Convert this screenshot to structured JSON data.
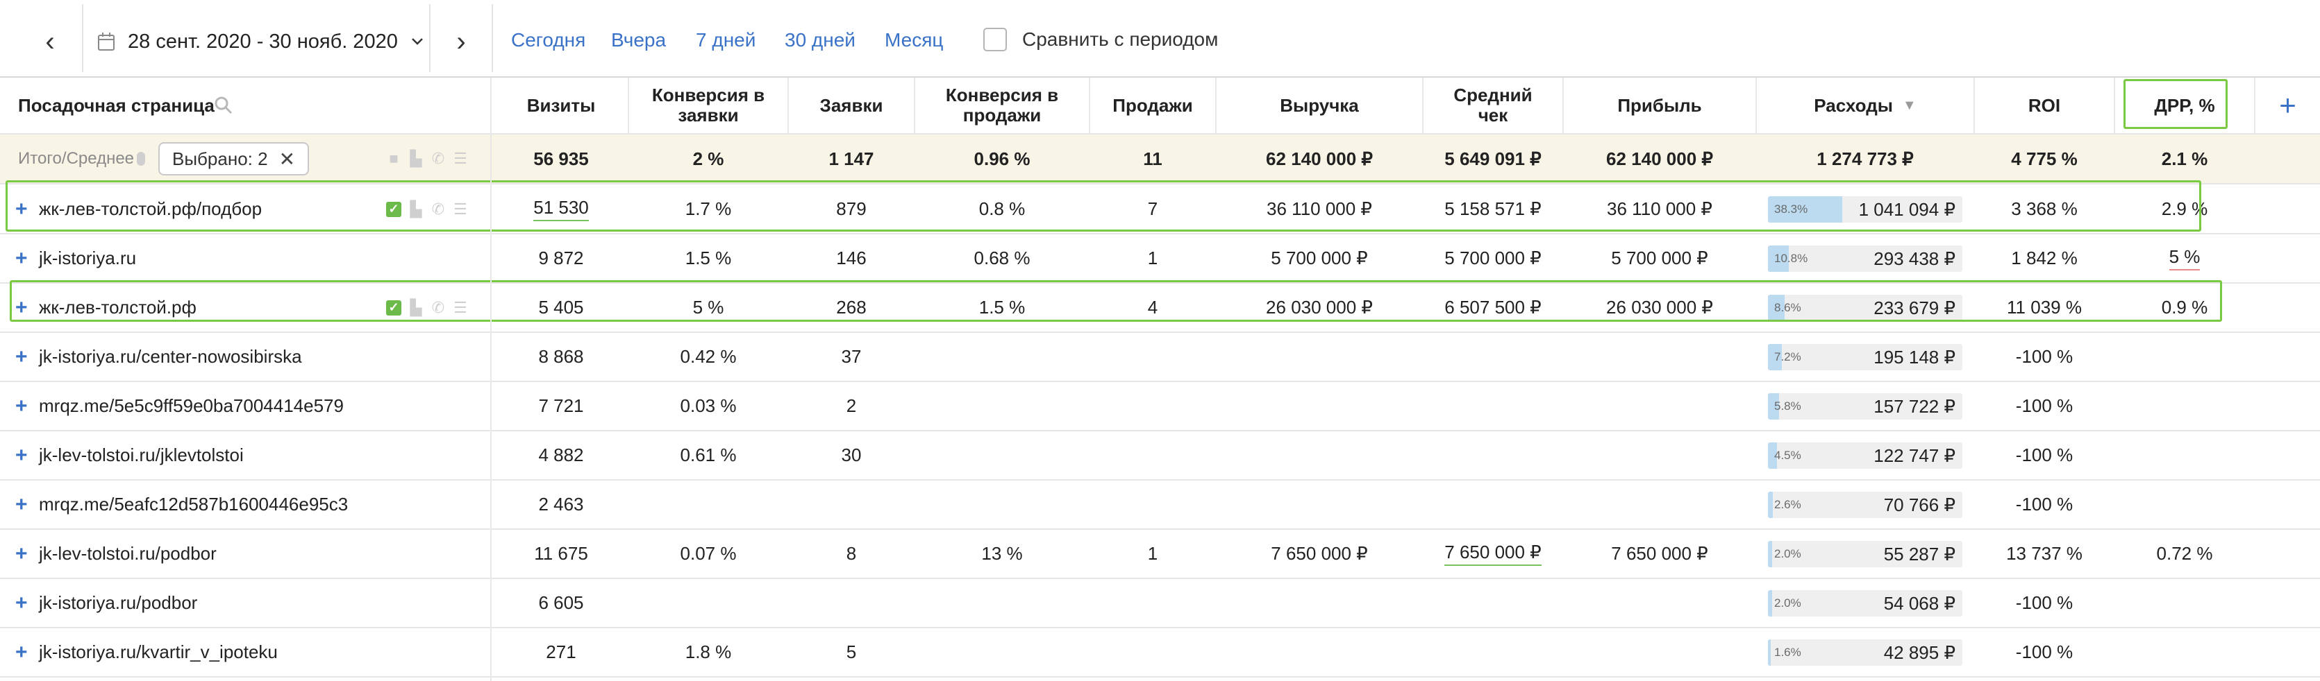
{
  "toolbar": {
    "prev_label": "‹",
    "next_label": "›",
    "date_range": "28 сент. 2020 - 30 нояб. 2020",
    "quick_links": [
      "Сегодня",
      "Вчера",
      "7 дней",
      "30 дней",
      "Месяц"
    ],
    "compare_label": "Сравнить с периодом",
    "compare_checked": false
  },
  "header": {
    "page_col": "Посадочная страница",
    "visits": "Визиты",
    "conv_leads_1": "Конверсия в",
    "conv_leads_2": "заявки",
    "leads": "Заявки",
    "conv_sales_1": "Конверсия в",
    "conv_sales_2": "продажи",
    "sales": "Продажи",
    "revenue": "Выручка",
    "avg_check_1": "Средний",
    "avg_check_2": "чек",
    "profit": "Прибыль",
    "expenses": "Расходы",
    "expenses_sort": "▼",
    "roi": "ROI",
    "drr": "ДРР, %",
    "add": "+"
  },
  "totals": {
    "label": "Итого/Среднее",
    "selected": "Выбрано: 2",
    "visits": "56 935",
    "conv_leads": "2 %",
    "leads": "1 147",
    "conv_sales": "0.96 %",
    "sales": "11",
    "revenue": "62 140 000 ₽",
    "avg_check": "5 649 091 ₽",
    "profit": "62 140 000 ₽",
    "expenses": "1 274 773 ₽",
    "roi": "4 775 %",
    "drr": "2.1 %"
  },
  "rows": [
    {
      "page": "жк-лев-толстой.рф/подбор",
      "visits": "51 530",
      "conv_leads": "1.7 %",
      "leads": "879",
      "conv_sales": "0.8 %",
      "sales": "7",
      "revenue": "36 110 000 ₽",
      "avg_check": "5 158 571 ₽",
      "profit": "36 110 000 ₽",
      "exp_pct": "38.3%",
      "exp_share": 0.383,
      "expenses": "1 041 094 ₽",
      "roi": "3 368 %",
      "drr": "2.9 %",
      "selected": true
    },
    {
      "page": "jk-istoriya.ru",
      "visits": "9 872",
      "conv_leads": "1.5 %",
      "leads": "146",
      "conv_sales": "0.68 %",
      "sales": "1",
      "revenue": "5 700 000 ₽",
      "avg_check": "5 700 000 ₽",
      "profit": "5 700 000 ₽",
      "exp_pct": "10.8%",
      "exp_share": 0.108,
      "expenses": "293 438 ₽",
      "roi": "1 842 %",
      "drr": "5 %",
      "selected": false
    },
    {
      "page": "жк-лев-толстой.рф",
      "visits": "5 405",
      "conv_leads": "5 %",
      "leads": "268",
      "conv_sales": "1.5 %",
      "sales": "4",
      "revenue": "26 030 000 ₽",
      "avg_check": "6 507 500 ₽",
      "profit": "26 030 000 ₽",
      "exp_pct": "8.6%",
      "exp_share": 0.086,
      "expenses": "233 679 ₽",
      "roi": "11 039 %",
      "drr": "0.9 %",
      "selected": true
    },
    {
      "page": "jk-istoriya.ru/center-nowosibirska",
      "visits": "8 868",
      "conv_leads": "0.42 %",
      "leads": "37",
      "conv_sales": "",
      "sales": "",
      "revenue": "",
      "avg_check": "",
      "profit": "",
      "exp_pct": "7.2%",
      "exp_share": 0.072,
      "expenses": "195 148 ₽",
      "roi": "-100 %",
      "drr": "",
      "selected": false
    },
    {
      "page": "mrqz.me/5e5c9ff59e0ba7004414e579",
      "visits": "7 721",
      "conv_leads": "0.03 %",
      "leads": "2",
      "conv_sales": "",
      "sales": "",
      "revenue": "",
      "avg_check": "",
      "profit": "",
      "exp_pct": "5.8%",
      "exp_share": 0.058,
      "expenses": "157 722 ₽",
      "roi": "-100 %",
      "drr": "",
      "selected": false
    },
    {
      "page": "jk-lev-tolstoi.ru/jklevtolstoi",
      "visits": "4 882",
      "conv_leads": "0.61 %",
      "leads": "30",
      "conv_sales": "",
      "sales": "",
      "revenue": "",
      "avg_check": "",
      "profit": "",
      "exp_pct": "4.5%",
      "exp_share": 0.045,
      "expenses": "122 747 ₽",
      "roi": "-100 %",
      "drr": "",
      "selected": false
    },
    {
      "page": "mrqz.me/5eafc12d587b1600446e95c3",
      "visits": "2 463",
      "conv_leads": "",
      "leads": "",
      "conv_sales": "",
      "sales": "",
      "revenue": "",
      "avg_check": "",
      "profit": "",
      "exp_pct": "2.6%",
      "exp_share": 0.026,
      "expenses": "70 766 ₽",
      "roi": "-100 %",
      "drr": "",
      "selected": false
    },
    {
      "page": "jk-lev-tolstoi.ru/podbor",
      "visits": "11 675",
      "conv_leads": "0.07 %",
      "leads": "8",
      "conv_sales": "13 %",
      "sales": "1",
      "revenue": "7 650 000 ₽",
      "avg_check": "7 650 000 ₽",
      "profit": "7 650 000 ₽",
      "exp_pct": "2.0%",
      "exp_share": 0.02,
      "expenses": "55 287 ₽",
      "roi": "13 737 %",
      "drr": "0.72 %",
      "selected": false
    },
    {
      "page": "jk-istoriya.ru/podbor",
      "visits": "6 605",
      "conv_leads": "",
      "leads": "",
      "conv_sales": "",
      "sales": "",
      "revenue": "",
      "avg_check": "",
      "profit": "",
      "exp_pct": "2.0%",
      "exp_share": 0.02,
      "expenses": "54 068 ₽",
      "roi": "-100 %",
      "drr": "",
      "selected": false
    },
    {
      "page": "jk-istoriya.ru/kvartir_v_ipoteku",
      "visits": "271",
      "conv_leads": "1.8 %",
      "leads": "5",
      "conv_sales": "",
      "sales": "",
      "revenue": "",
      "avg_check": "",
      "profit": "",
      "exp_pct": "1.6%",
      "exp_share": 0.016,
      "expenses": "42 895 ₽",
      "roi": "-100 %",
      "drr": "",
      "selected": false
    }
  ],
  "colors": {
    "link": "#3a72c8",
    "totals_bg": "#f8f4e6",
    "highlight": "#7ac943",
    "bar_fill": "#bcdaf0"
  }
}
